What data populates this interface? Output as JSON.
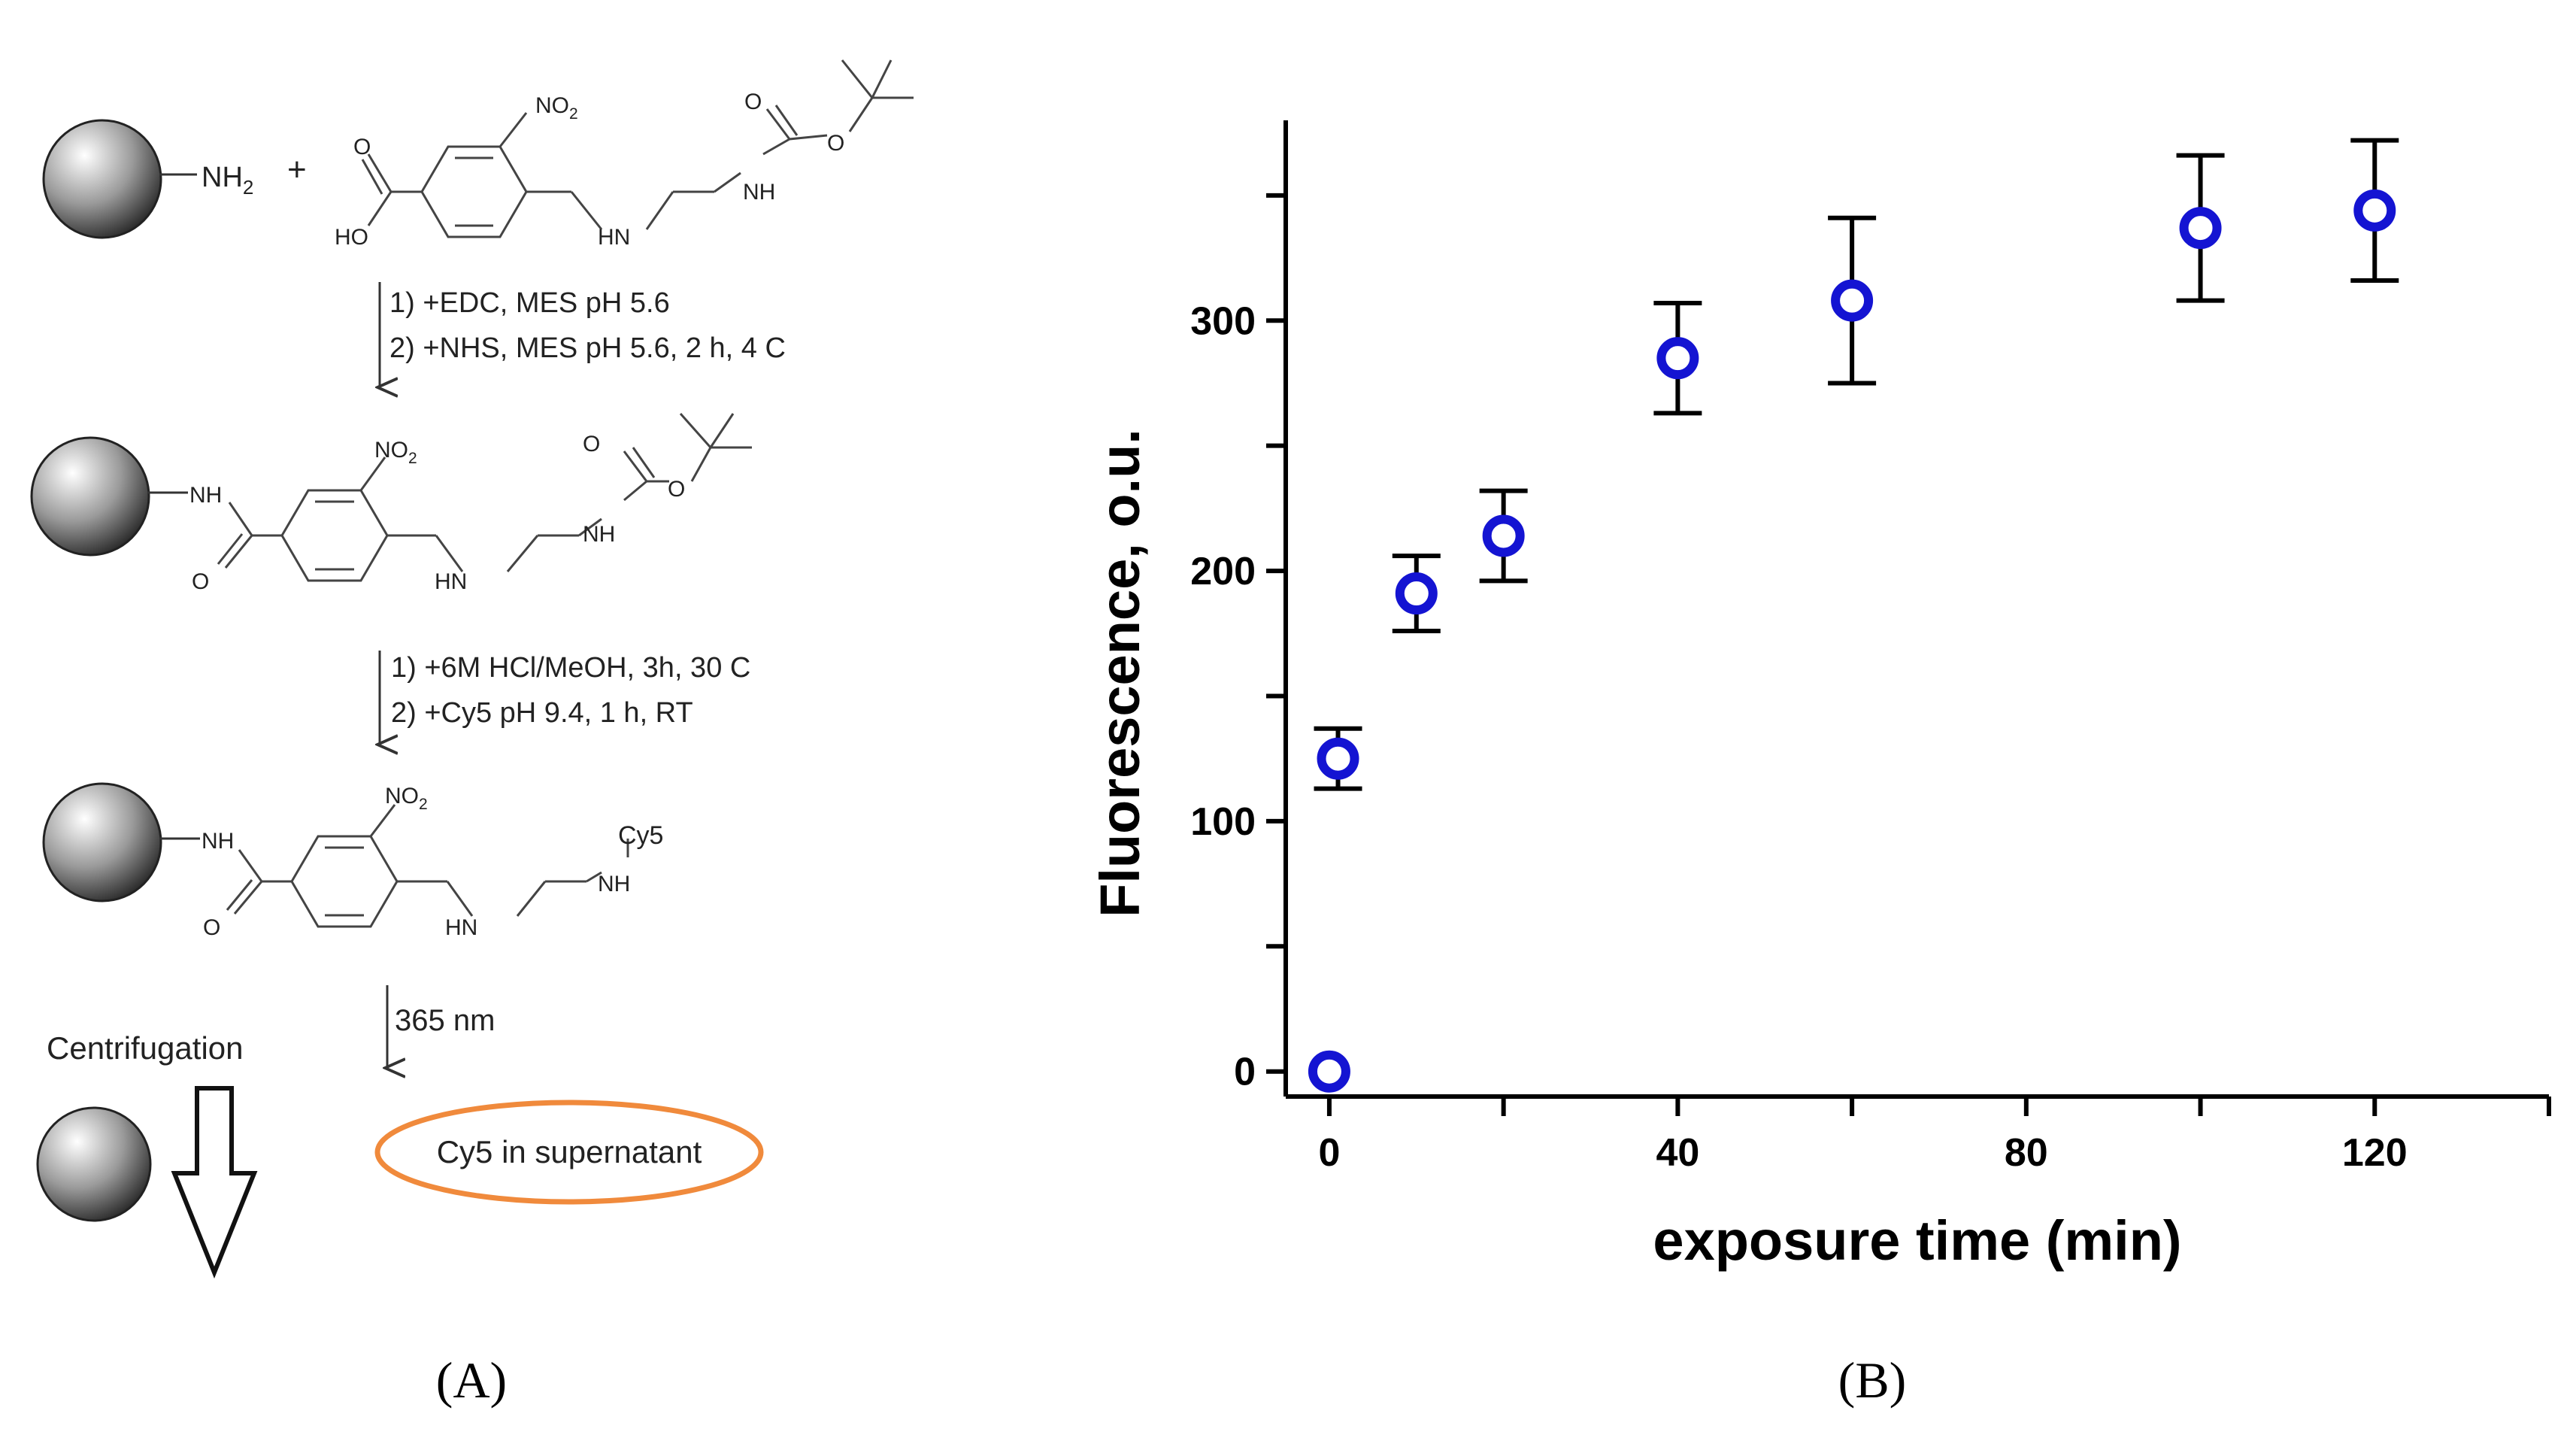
{
  "panel_a": {
    "label": "(A)",
    "reactant_amine": "NH",
    "reactant_amine_sub": "2",
    "plus": "+",
    "linker_labels": {
      "no2": "NO",
      "no2_sub": "2",
      "ho": "HO",
      "carbonyl_o": "O",
      "hn": "HN",
      "nh": "NH",
      "boc_o_top": "O",
      "boc_o_ester": "O"
    },
    "step1": [
      "1) +EDC, MES pH 5.6",
      "2) +NHS, MES pH 5.6, 2 h, 4 C"
    ],
    "step2": [
      "1) +6M HCl/MeOH, 3h, 30 C",
      "2) +Cy5 pH 9.4, 1 h, RT"
    ],
    "cy5_label": "Cy5",
    "step3": "365 nm",
    "centrifugation": "Centrifugation",
    "supernatant": "Cy5 in supernatant",
    "supernatant_color": "#f08a3c"
  },
  "panel_b": {
    "label": "(B)",
    "marker_color": "#1414d2",
    "chart_data": {
      "type": "scatter",
      "xlabel": "exposure time (min)",
      "ylabel": "Fluorescence, o.u.",
      "xlim": [
        -5,
        140
      ],
      "ylim": [
        -10,
        380
      ],
      "xticks": [
        0,
        40,
        80,
        120
      ],
      "yticks": [
        0,
        100,
        200,
        300
      ],
      "series": [
        {
          "x": [
            0,
            1,
            10,
            20,
            40,
            60,
            100,
            120
          ],
          "y": [
            0,
            125,
            191,
            214,
            285,
            308,
            337,
            344
          ],
          "err_low": [
            0,
            12,
            15,
            18,
            22,
            33,
            29,
            28
          ],
          "err_high": [
            0,
            12,
            15,
            18,
            22,
            33,
            29,
            28
          ],
          "err_shown": [
            false,
            true,
            true,
            true,
            true,
            true,
            true,
            true
          ]
        }
      ],
      "grid": false
    }
  }
}
